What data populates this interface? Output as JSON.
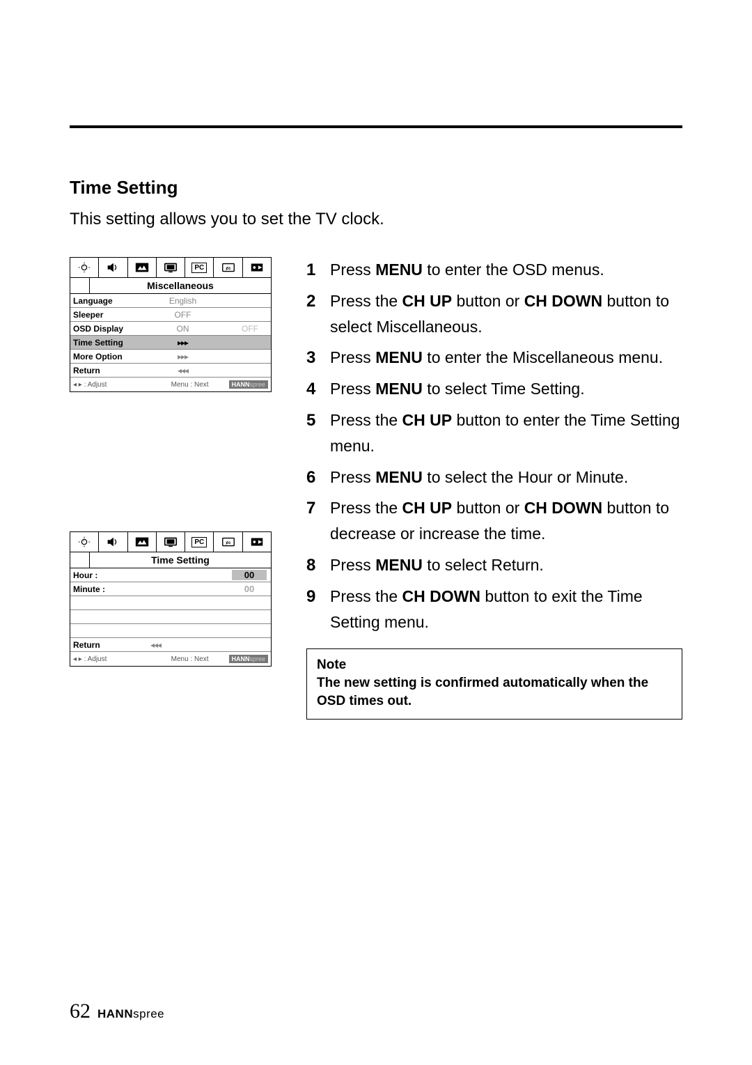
{
  "section_title": "Time Setting",
  "intro_text": "This setting allows you to set the TV clock.",
  "osd1": {
    "title": "Miscellaneous",
    "rows": [
      {
        "label": "Language",
        "val": "English",
        "val2": "",
        "highlight": false,
        "arrow": ""
      },
      {
        "label": "Sleeper",
        "val": "OFF",
        "val2": "",
        "highlight": false,
        "arrow": ""
      },
      {
        "label": "OSD Display",
        "val": "ON",
        "val2": "OFF",
        "highlight": false,
        "arrow": ""
      },
      {
        "label": "Time Setting",
        "val": "",
        "val2": "",
        "highlight": true,
        "arrow": "▸▸▸"
      },
      {
        "label": "More Option",
        "val": "",
        "val2": "",
        "highlight": false,
        "arrow": "▸▸▸"
      },
      {
        "label": "Return",
        "val": "",
        "val2": "",
        "highlight": false,
        "arrow": "◂◂◂"
      }
    ],
    "footer_left": "◂ ▸  :  Adjust",
    "footer_mid": "Menu  :  Next",
    "footer_brand_bold": "HANN",
    "footer_brand_light": "spree"
  },
  "osd2": {
    "title": "Time Setting",
    "hour_label": "Hour    :",
    "hour_val": "00",
    "minute_label": "Minute :",
    "minute_val": "00",
    "return_label": "Return",
    "return_arrow": "◂◂◂",
    "footer_left": "◂ ▸  :  Adjust",
    "footer_mid": "Menu  :  Next",
    "footer_brand_bold": "HANN",
    "footer_brand_light": "spree"
  },
  "pc_label": "PC",
  "steps": [
    {
      "pre": "Press ",
      "b1": "MENU",
      "post": " to enter the OSD menus."
    },
    {
      "pre": "Press the ",
      "b1": "CH UP",
      "mid": " button or ",
      "b2": "CH DOWN",
      "post": " button to select Miscellaneous."
    },
    {
      "pre": "Press ",
      "b1": "MENU",
      "post": " to enter the Miscellaneous menu."
    },
    {
      "pre": "Press ",
      "b1": "MENU",
      "post": " to select Time Setting."
    },
    {
      "pre": "Press the ",
      "b1": "CH UP",
      "post": " button to enter the Time Setting menu."
    },
    {
      "pre": "Press ",
      "b1": "MENU",
      "post": " to select the Hour or Minute."
    },
    {
      "pre": "Press the ",
      "b1": "CH UP",
      "mid": " button or ",
      "b2": "CH DOWN",
      "post": " button to decrease or increase the time."
    },
    {
      "pre": "Press ",
      "b1": "MENU",
      "post": " to select Return."
    },
    {
      "pre": "Press the ",
      "b1": "CH DOWN",
      "post": " button to exit the Time Setting menu."
    }
  ],
  "note": {
    "title": "Note",
    "body": "The new setting is confirmed automatically when the OSD times out."
  },
  "page_number": "62",
  "brand_bold": "HANN",
  "brand_light": "spree"
}
